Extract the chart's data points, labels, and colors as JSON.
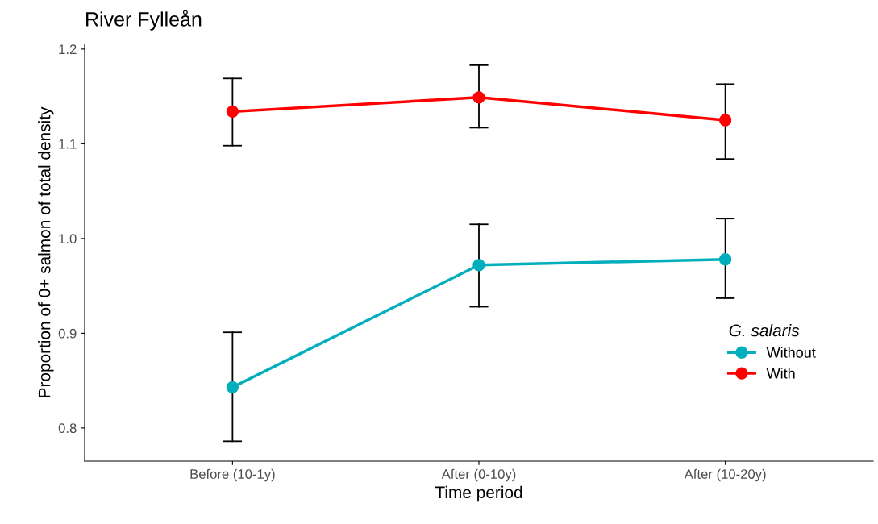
{
  "chart_data": {
    "type": "line",
    "title": "River Fylleån",
    "xlabel": "Time period",
    "ylabel": "Proportion of 0+ salmon of total density",
    "legend_title": "G. salaris",
    "categories": [
      "Before (10-1y)",
      "After (0-10y)",
      "After (10-20y)"
    ],
    "series": [
      {
        "name": "Without",
        "color": "#00afbb",
        "values": [
          0.843,
          0.972,
          0.978
        ],
        "errors": [
          [
            0.786,
            0.901
          ],
          [
            0.928,
            1.015
          ],
          [
            0.937,
            1.021
          ]
        ]
      },
      {
        "name": "With",
        "color": "#ff0000",
        "values": [
          1.134,
          1.149,
          1.125
        ],
        "errors": [
          [
            1.098,
            1.169
          ],
          [
            1.117,
            1.183
          ],
          [
            1.084,
            1.163
          ]
        ]
      }
    ],
    "ylim": [
      0.765,
      1.205
    ],
    "yticks": [
      0.8,
      0.9,
      {
        "value": 1.0,
        "label": "1.0"
      },
      1.1,
      {
        "value": 1.2,
        "label": "1.2"
      }
    ],
    "grid": false,
    "legend": "right",
    "marker": "circle",
    "line_style": "solid"
  }
}
